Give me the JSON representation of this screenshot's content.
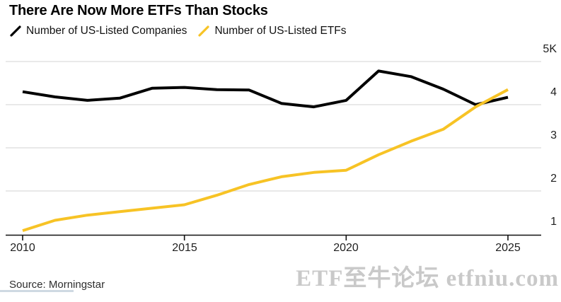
{
  "title": "There Are Now More ETFs Than Stocks",
  "legend": {
    "companies": {
      "label": "Number of US-Listed Companies",
      "color": "#000000"
    },
    "etfs": {
      "label": "Number of US-Listed ETFs",
      "color": "#F7C325"
    }
  },
  "source": "Source: Morningstar",
  "watermark": "ETF至牛论坛 etfniu.com",
  "colors": {
    "companies_line": "#000000",
    "etfs_line": "#F7C325",
    "gridline": "#dcdcdc",
    "axis": "#111111",
    "watermark": "#c9c9c9"
  },
  "chart_data": {
    "type": "line",
    "title": "There Are Now More ETFs Than Stocks",
    "xlabel": "",
    "ylabel": "",
    "unit": "count (axis shown in thousands, K)",
    "grid": "horizontal",
    "legend_position": "top",
    "x": [
      2010,
      2011,
      2012,
      2013,
      2014,
      2015,
      2016,
      2017,
      2018,
      2019,
      2020,
      2021,
      2022,
      2023,
      2024,
      2025
    ],
    "series": [
      {
        "name": "Number of US-Listed Companies",
        "color": "#000000",
        "values": [
          4300,
          4180,
          4100,
          4150,
          4380,
          4400,
          4350,
          4340,
          4030,
          3950,
          4100,
          4780,
          4650,
          4360,
          4000,
          4170
        ]
      },
      {
        "name": "Number of US-Listed ETFs",
        "color": "#F7C325",
        "values": [
          1080,
          1320,
          1440,
          1520,
          1600,
          1680,
          1900,
          2150,
          2330,
          2430,
          2480,
          2840,
          3150,
          3430,
          3950,
          4350
        ]
      }
    ],
    "ylim": [
      1000,
      5000
    ],
    "x_tick_values": [
      2010,
      2015,
      2020,
      2025
    ],
    "x_tick_labels": [
      "2010",
      "2015",
      "2020",
      "2025"
    ],
    "y_tick_values": [
      5000,
      4000,
      3000,
      2000,
      1000
    ],
    "y_tick_labels": [
      "5K",
      "4",
      "3",
      "2",
      "1"
    ]
  }
}
